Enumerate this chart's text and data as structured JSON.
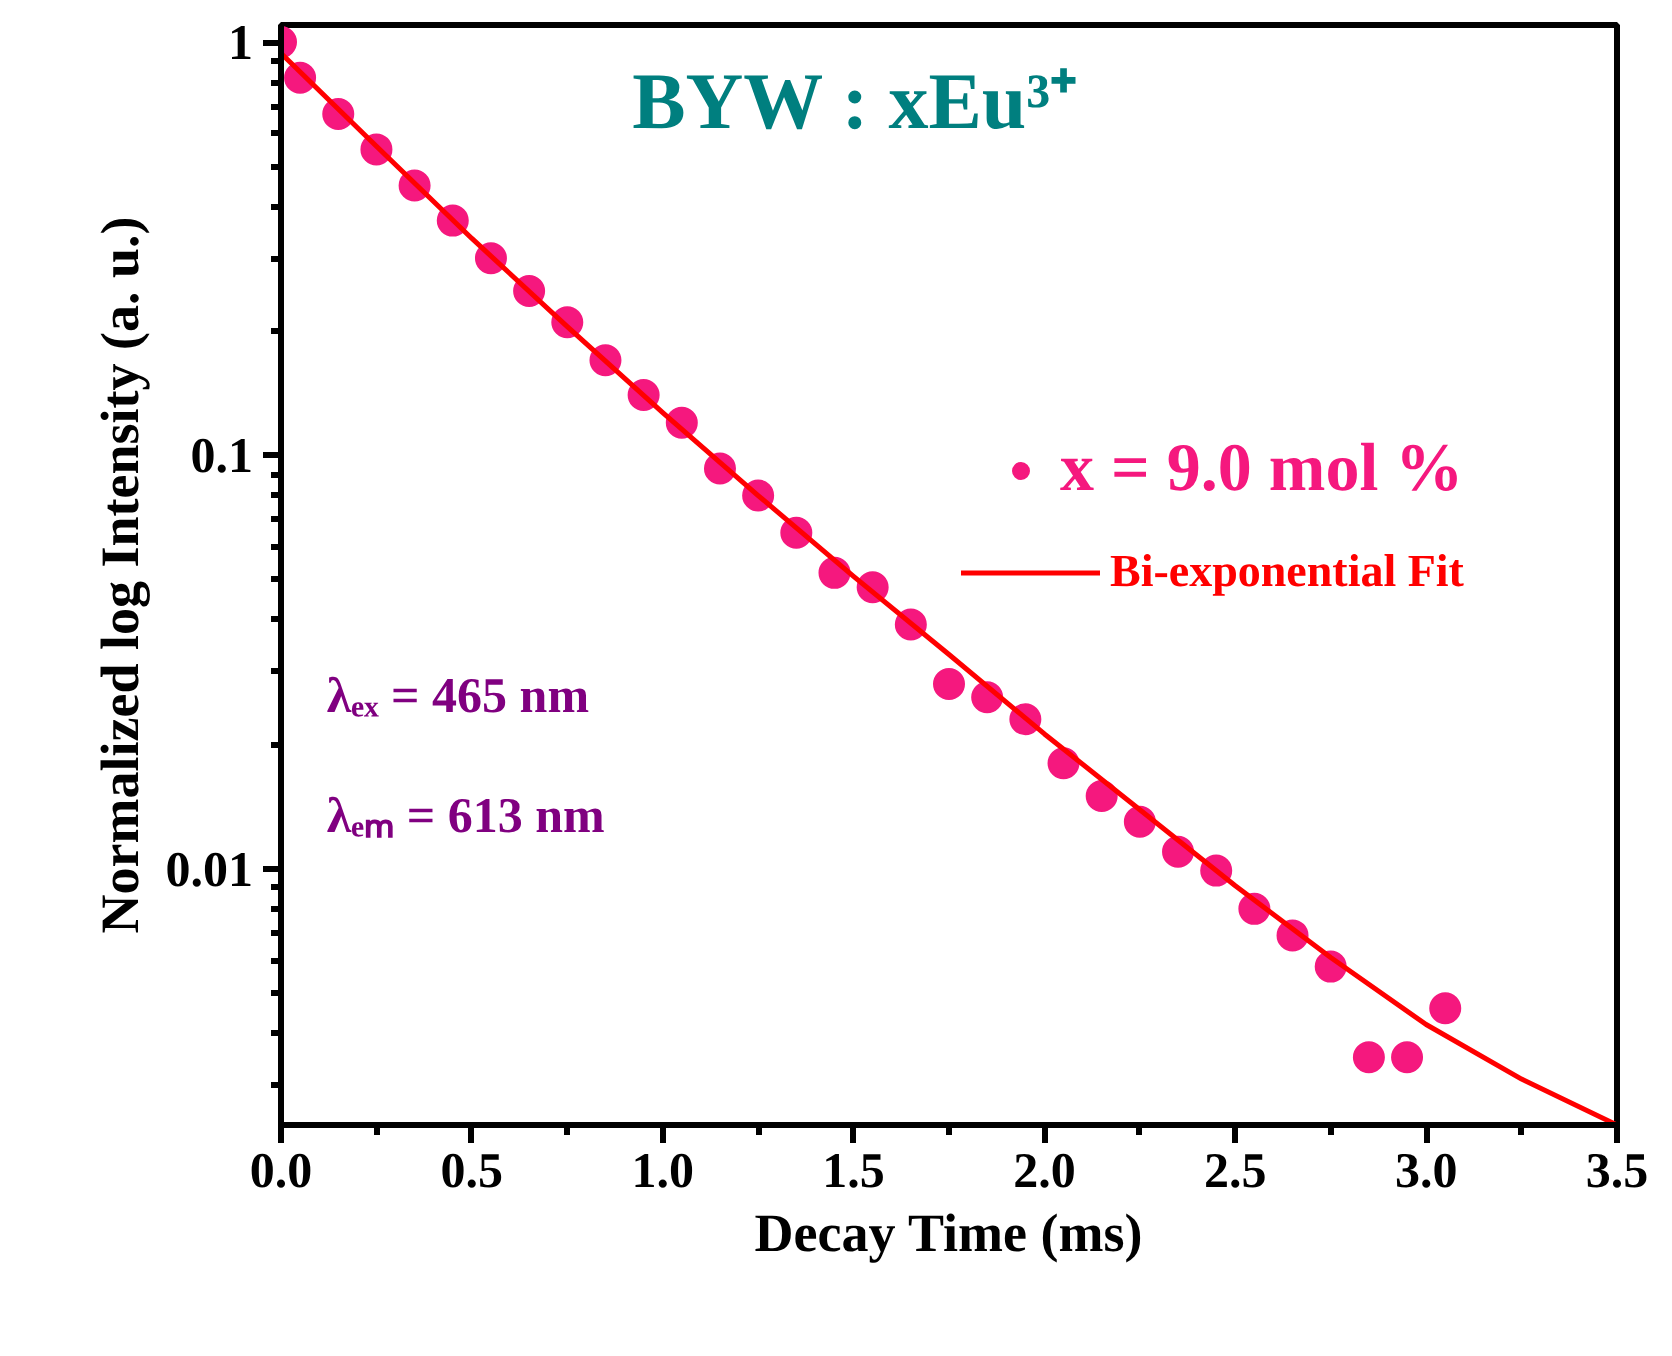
{
  "chart_data": {
    "type": "scatter",
    "title": "BYW : xEu³⁺",
    "xlabel": "Decay Time (ms)",
    "ylabel": "Normalized log Intensity (a. u.)",
    "annotations": [
      "λₑₓ = 465 nm",
      "λₑₘ = 613 nm"
    ],
    "x": [
      0.0,
      0.05,
      0.15,
      0.25,
      0.35,
      0.45,
      0.55,
      0.65,
      0.75,
      0.85,
      0.95,
      1.05,
      1.15,
      1.25,
      1.35,
      1.45,
      1.55,
      1.65,
      1.75,
      1.85,
      1.95,
      2.05,
      2.15,
      2.25,
      2.35,
      2.45,
      2.55,
      2.65,
      2.75,
      2.85,
      2.95,
      3.05
    ],
    "series": [
      {
        "name": "x = 9.0 mol %",
        "color": "#f5187e",
        "marker": "circle",
        "values": [
          1.0,
          0.82,
          0.67,
          0.55,
          0.45,
          0.37,
          0.3,
          0.25,
          0.21,
          0.17,
          0.14,
          0.12,
          0.093,
          0.08,
          0.065,
          0.052,
          0.048,
          0.039,
          0.028,
          0.026,
          0.023,
          0.018,
          0.015,
          0.013,
          0.011,
          0.0099,
          0.008,
          0.0069,
          0.0058,
          0.0035,
          0.0035,
          0.0046
        ]
      },
      {
        "name": "Bi-exponential Fit",
        "color": "#ff0000",
        "type": "line",
        "line_style": "solid",
        "x": [
          0.0,
          0.25,
          0.5,
          0.75,
          1.0,
          1.25,
          1.5,
          1.75,
          2.0,
          2.25,
          2.5,
          2.75,
          3.0,
          3.25,
          3.5
        ],
        "values": [
          0.94,
          0.56,
          0.335,
          0.205,
          0.127,
          0.08,
          0.051,
          0.033,
          0.0212,
          0.0139,
          0.0091,
          0.0061,
          0.0042,
          0.0031,
          0.0024
        ]
      }
    ],
    "log": "y",
    "xlim": [
      0,
      3.5
    ],
    "ylim": [
      0.0024,
      1.1
    ],
    "xticks": [
      {
        "value": 0,
        "label": "0.0"
      },
      {
        "value": 0.5,
        "label": "0.5"
      },
      {
        "value": 1,
        "label": "1.0"
      },
      {
        "value": 1.5,
        "label": "1.5"
      },
      {
        "value": 2,
        "label": "2.0"
      },
      {
        "value": 2.5,
        "label": "2.5"
      },
      {
        "value": 3,
        "label": "3.0"
      },
      {
        "value": 3.5,
        "label": "3.5"
      }
    ],
    "yticks": [
      0.01,
      0.1,
      1
    ],
    "grid": false,
    "legend": "top right"
  }
}
